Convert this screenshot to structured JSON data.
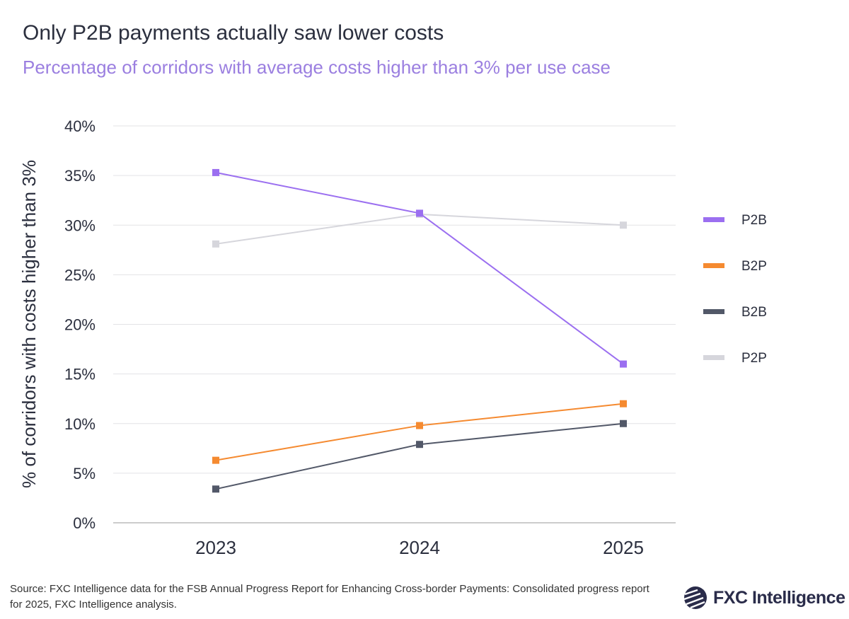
{
  "title": "Only P2B payments actually saw lower costs",
  "subtitle": "Percentage of corridors with average costs higher than 3% per use case",
  "source": "Source: FXC Intelligence data for the FSB Annual Progress Report for Enhancing Cross-border Payments: Consolidated progress report for 2025, FXC Intelligence analysis.",
  "logo": "FXC Intelligence",
  "chart_data": {
    "type": "line",
    "title": "Only P2B payments actually saw lower costs",
    "subtitle": "Percentage of corridors with average costs higher than 3% per use case",
    "xlabel": "",
    "ylabel": "% of corridors with costs higher than 3%",
    "categories": [
      "2023",
      "2024",
      "2025"
    ],
    "ylim": [
      0,
      40
    ],
    "yticks": [
      "0%",
      "5%",
      "10%",
      "15%",
      "20%",
      "25%",
      "30%",
      "35%",
      "40%"
    ],
    "grid": true,
    "legend": "right",
    "series": [
      {
        "name": "P2B",
        "color": "#9b6ff0",
        "values": [
          35.3,
          31.2,
          16.0
        ]
      },
      {
        "name": "B2P",
        "color": "#f58a30",
        "values": [
          6.3,
          9.8,
          12.0
        ]
      },
      {
        "name": "B2B",
        "color": "#525868",
        "values": [
          3.4,
          7.9,
          10.0
        ]
      },
      {
        "name": "P2P",
        "color": "#d6d6dc",
        "values": [
          28.1,
          31.1,
          30.0
        ]
      }
    ]
  }
}
